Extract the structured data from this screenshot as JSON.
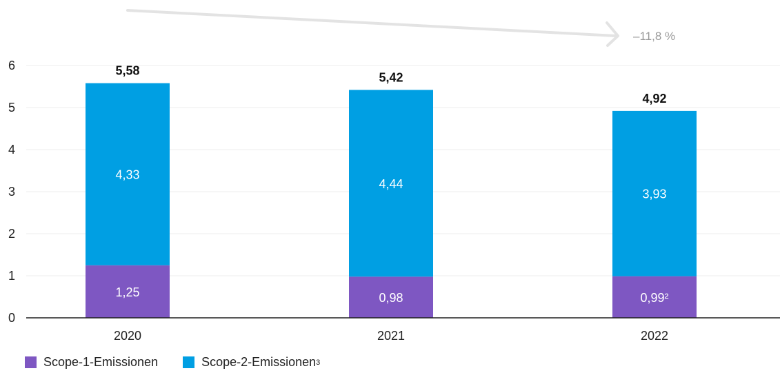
{
  "chart_data": {
    "type": "bar",
    "stacked": true,
    "categories": [
      "2020",
      "2021",
      "2022"
    ],
    "series": [
      {
        "name": "Scope-1-Emissionen",
        "values": [
          1.25,
          0.98,
          0.99
        ],
        "labels": [
          "1,25",
          "0,98",
          "0,99²"
        ],
        "color": "#7e57c2"
      },
      {
        "name": "Scope-2-Emissionen",
        "name_sup": "3",
        "values": [
          4.33,
          4.44,
          3.93
        ],
        "labels": [
          "4,33",
          "4,44",
          "3,93"
        ],
        "color": "#009fe3"
      }
    ],
    "totals": [
      "5,58",
      "5,42",
      "4,92"
    ],
    "total_values": [
      5.58,
      5.42,
      4.92
    ],
    "ylim": [
      0,
      6
    ],
    "yticks": [
      "0",
      "1",
      "2",
      "3",
      "4",
      "5",
      "6"
    ],
    "grid": true,
    "trend": {
      "label": "–11,8 %"
    },
    "legend_position": "bottom-left"
  },
  "legend": {
    "scope1": "Scope-1-Emissionen",
    "scope2": "Scope-2-Emissionen",
    "scope2_sup": "3"
  }
}
